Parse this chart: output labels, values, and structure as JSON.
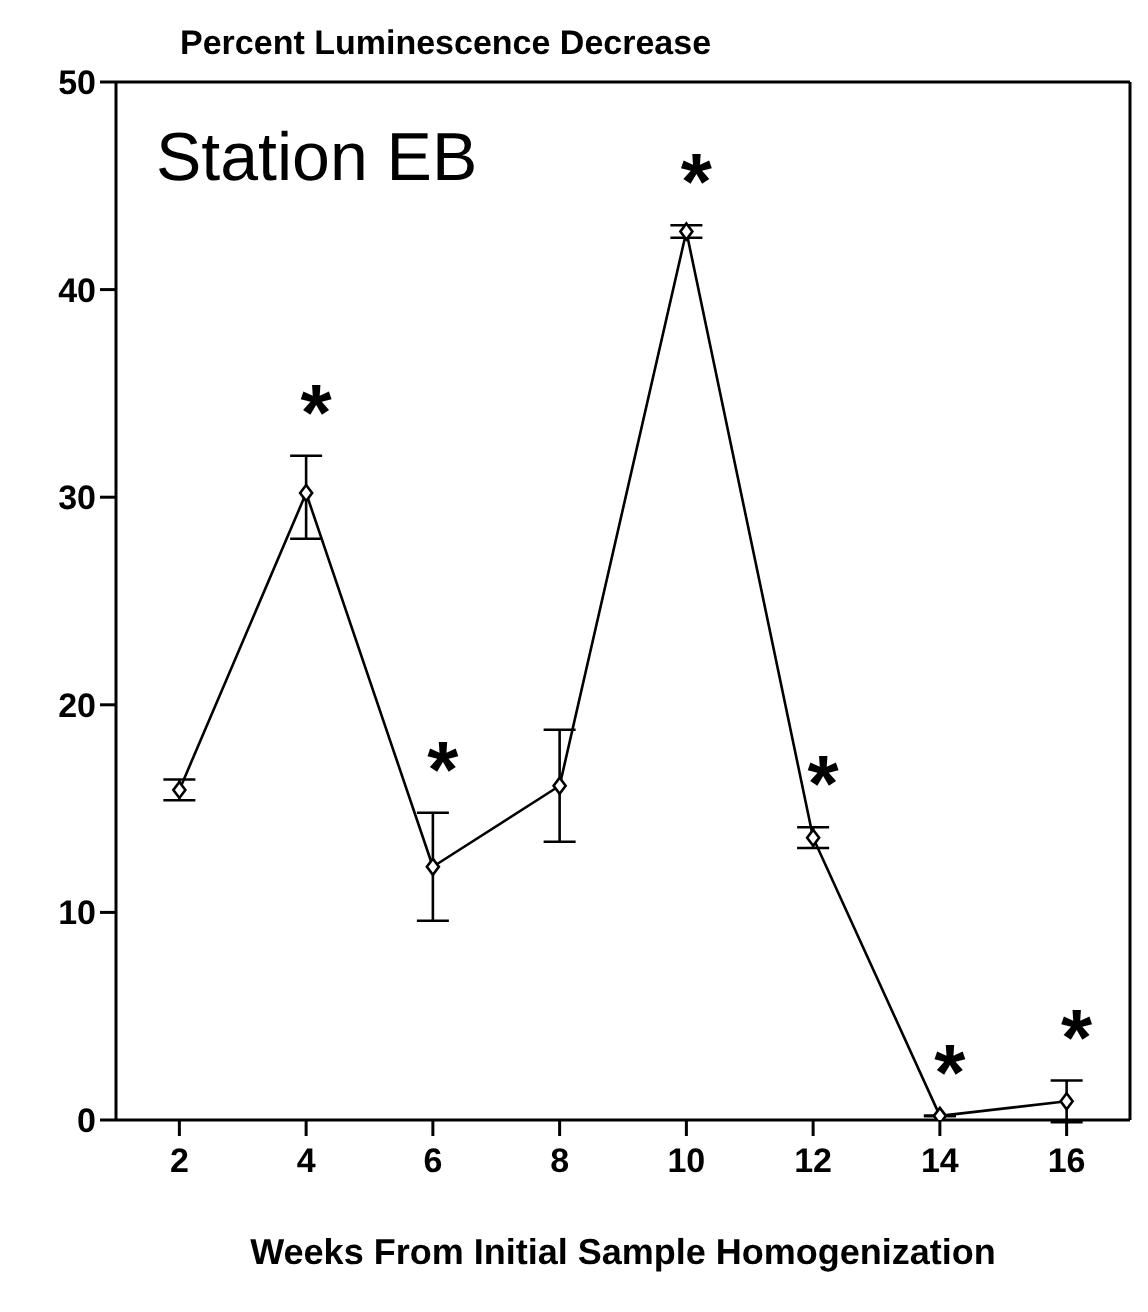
{
  "chart_data": {
    "type": "line",
    "ylabel": "Percent Luminescence Decrease",
    "xlabel": "Weeks From Initial Sample Homogenization",
    "x": [
      2,
      4,
      6,
      8,
      10,
      12,
      14,
      16
    ],
    "series": [
      {
        "color": "#000000",
        "values": [
          15.9,
          30.2,
          12.2,
          16.1,
          42.8,
          13.6,
          0.2,
          0.9
        ],
        "errors": [
          0.5,
          [
            28.0,
            32.0
          ],
          [
            9.6,
            14.8
          ],
          [
            13.4,
            18.8
          ],
          0.3,
          0.5,
          null,
          1
        ]
      }
    ],
    "xlim": [
      1,
      17
    ],
    "xticks": [
      2,
      4,
      6,
      8,
      10,
      12,
      14,
      16
    ],
    "ylim": [
      0,
      50
    ],
    "yticks": [
      0,
      10,
      20,
      30,
      40,
      50
    ],
    "grid": false,
    "legend": false,
    "marker": "diamond",
    "line_style": "solid",
    "annotations": [
      "Station EB",
      {
        "text": "*",
        "x": 4,
        "y": 30.2
      },
      {
        "text": "*",
        "x": 6,
        "y": 12.2
      },
      {
        "text": "*",
        "x": 10,
        "y": 42.8
      },
      {
        "text": "*",
        "x": 12,
        "y": 13.6
      },
      {
        "text": "*",
        "x": 14,
        "y": 0.2
      },
      {
        "text": "*",
        "x": 16,
        "y": 0.9
      }
    ]
  }
}
